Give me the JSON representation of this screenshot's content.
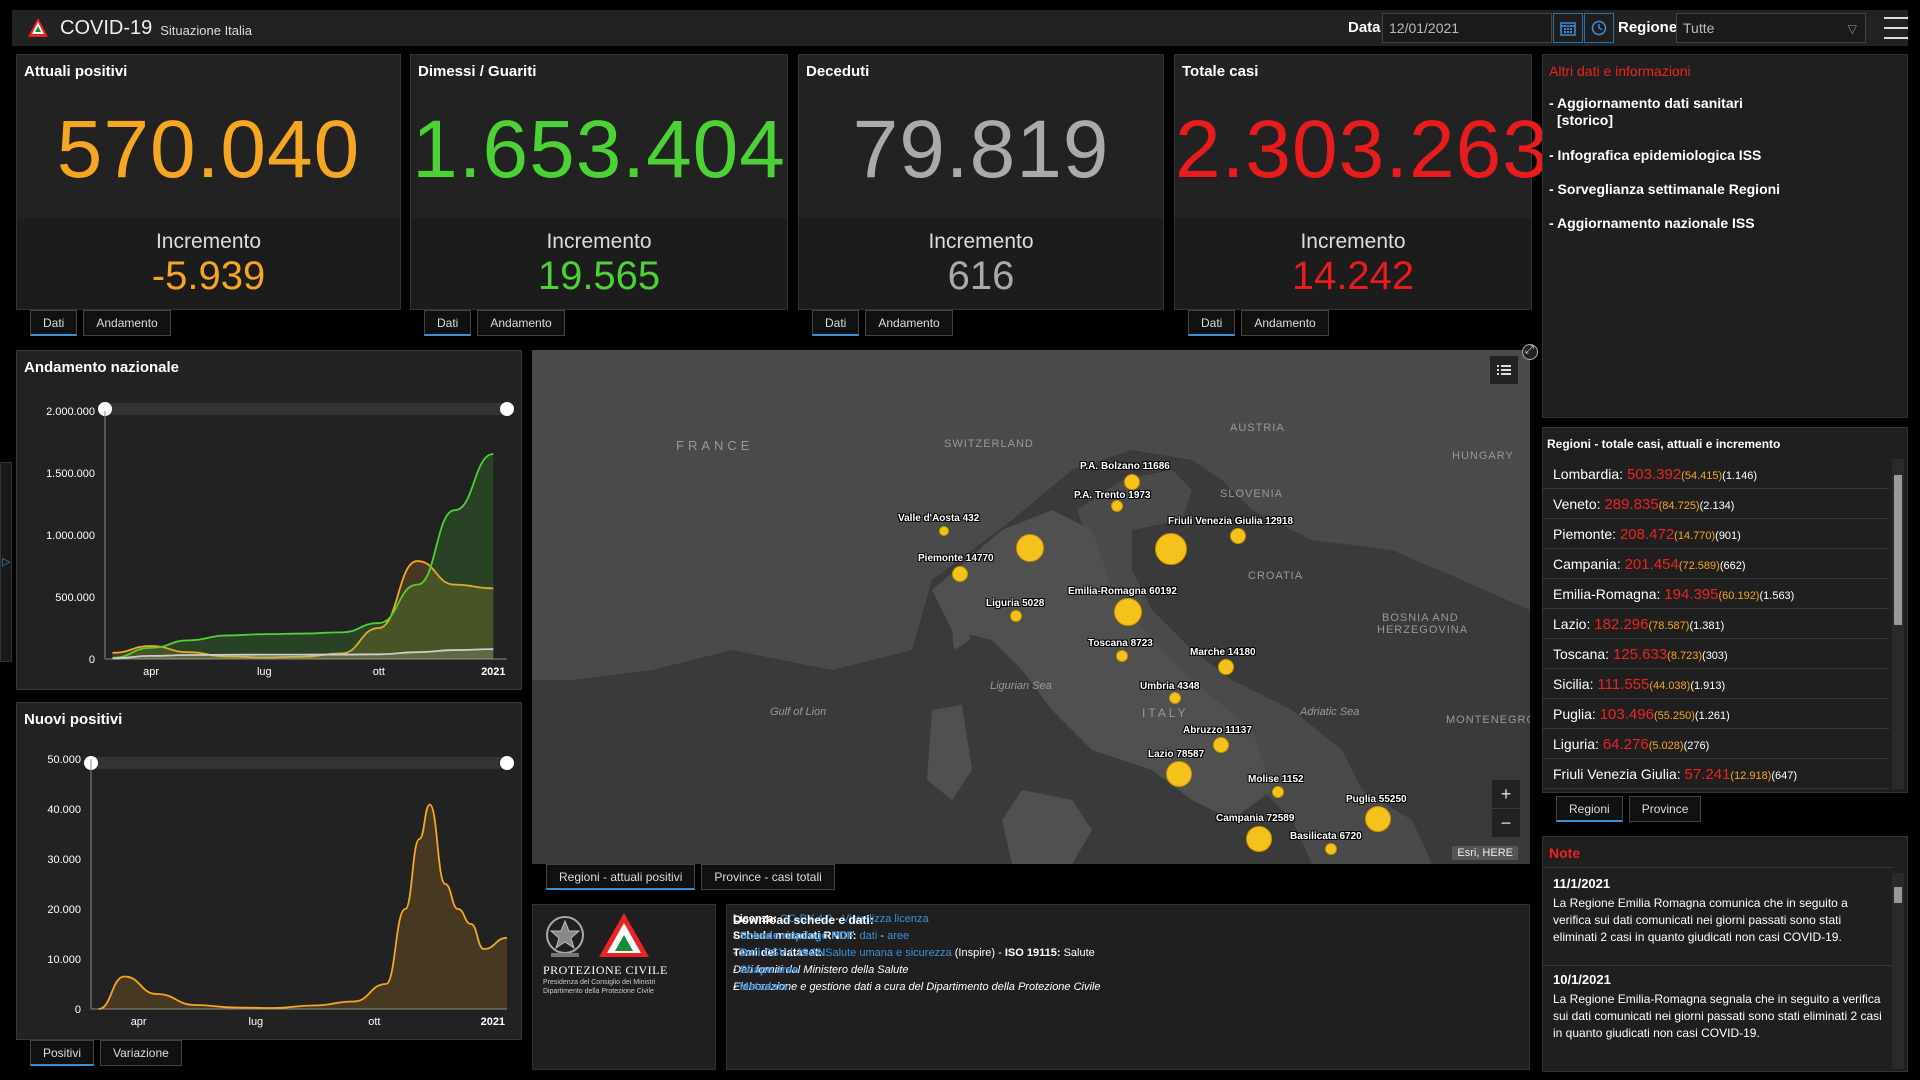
{
  "header": {
    "title": "COVID-19",
    "subtitle": "Situazione Italia",
    "data_label": "Data",
    "date_value": "12/01/2021",
    "regione_label": "Regione",
    "regione_value": "Tutte"
  },
  "cards": [
    {
      "title": "Attuali positivi",
      "value": "570.040",
      "inc_label": "Incremento",
      "inc_value": "-5.939",
      "color": "#f5a623"
    },
    {
      "title": "Dimessi / Guariti",
      "value": "1.653.404",
      "inc_label": "Incremento",
      "inc_value": "19.565",
      "color": "#4cd137"
    },
    {
      "title": "Deceduti",
      "value": "79.819",
      "inc_label": "Incremento",
      "inc_value": "616",
      "color": "#aaaaaa"
    },
    {
      "title": "Totale casi",
      "value": "2.303.263",
      "inc_label": "Incremento",
      "inc_value": "14.242",
      "color": "#e81c1c"
    }
  ],
  "card_tabs": {
    "dati": "Dati",
    "andamento": "Andamento"
  },
  "side_links": {
    "title": "Altri dati e informazioni",
    "items": [
      "- Aggiornamento dati sanitari",
      "[storico]",
      "- Infografica epidemiologica ISS",
      "- Sorveglianza settimanale Regioni",
      "- Aggiornamento nazionale ISS"
    ]
  },
  "chart1": {
    "title": "Andamento nazionale",
    "y_ticks": [
      "2.000.000",
      "1.500.000",
      "1.000.000",
      "500.000",
      "0"
    ],
    "x_ticks": [
      "apr",
      "lug",
      "ott",
      "2021"
    ]
  },
  "chart2": {
    "title": "Nuovi positivi",
    "y_ticks": [
      "50.000",
      "40.000",
      "30.000",
      "20.000",
      "10.000",
      "0"
    ],
    "x_ticks": [
      "apr",
      "lug",
      "ott",
      "2021"
    ],
    "tabs": [
      "Positivi",
      "Variazione"
    ]
  },
  "map": {
    "countries": [
      "FRANCE",
      "SWITZERLAND",
      "AUSTRIA",
      "HUNGARY",
      "SLOVENIA",
      "CROATIA",
      "BOSNIA AND",
      "HERZEGOVINA",
      "MONTENEGRO",
      "ITALY"
    ],
    "seas": [
      "Ligurian Sea",
      "Gulf of Lion",
      "Adriatic Sea"
    ],
    "labels": [
      "P.A. Bolzano 11686",
      "P.A. Trento 1973",
      "Valle d'Aosta 432",
      "Friuli Venezia Giulia 12918",
      "Piemonte 14770",
      "Emilia-Romagna 60192",
      "Liguria 5028",
      "Toscana 8723",
      "Marche 14180",
      "Umbria 4348",
      "Abruzzo 11137",
      "Lazio 78587",
      "Molise 1152",
      "Puglia 55250",
      "Campania 72589",
      "Basilicata 6720"
    ],
    "attribution": "Esri, HERE",
    "tabs": [
      "Regioni - attuali positivi",
      "Province - casi totali"
    ]
  },
  "regions": {
    "title": "Regioni - totale casi, attuali e incremento",
    "rows": [
      {
        "name": "Lombardia:",
        "tot": "503.392",
        "att": "(54.415)",
        "inc": "(1.146)"
      },
      {
        "name": "Veneto:",
        "tot": "289.835",
        "att": "(84.725)",
        "inc": "(2.134)"
      },
      {
        "name": "Piemonte:",
        "tot": "208.472",
        "att": "(14.770)",
        "inc": "(901)"
      },
      {
        "name": "Campania:",
        "tot": "201.454",
        "att": "(72.589)",
        "inc": "(662)"
      },
      {
        "name": "Emilia-Romagna:",
        "tot": "194.395",
        "att": "(60.192)",
        "inc": "(1.563)"
      },
      {
        "name": "Lazio:",
        "tot": "182.296",
        "att": "(78.587)",
        "inc": "(1.381)"
      },
      {
        "name": "Toscana:",
        "tot": "125.633",
        "att": "(8.723)",
        "inc": "(303)"
      },
      {
        "name": "Sicilia:",
        "tot": "111.555",
        "att": "(44.038)",
        "inc": "(1.913)"
      },
      {
        "name": "Puglia:",
        "tot": "103.496",
        "att": "(55.250)",
        "inc": "(1.261)"
      },
      {
        "name": "Liguria:",
        "tot": "64.276",
        "att": "(5.028)",
        "inc": "(276)"
      },
      {
        "name": "Friuli Venezia Giulia:",
        "tot": "57.241",
        "att": "(12.918)",
        "inc": "(647)"
      }
    ],
    "tabs": [
      "Regioni",
      "Province"
    ]
  },
  "notes": {
    "title": "Note",
    "items": [
      {
        "date": "11/1/2021",
        "text": "La Regione Emilia Romagna comunica che in seguito a verifica sui dati comunicati nei giorni passati sono stati eliminati 2 casi in quanto giudicati non casi COVID-19."
      },
      {
        "date": "10/1/2021",
        "text": "La Regione Emilia-Romagna segnala che in seguito a verifica sui dati comunicati nei giorni passati sono stati eliminati 2 casi in quanto giudicati non casi COVID-19."
      }
    ]
  },
  "gov": {
    "name": "PROTEZIONE CIVILE",
    "line1": "Presidenza del Consiglio dei Ministri",
    "line2": "Dipartimento della Protezione Civile"
  },
  "license": {
    "licenza_label": "Licenza:",
    "licenza_link": "CC-BY-4.0",
    "licenza_sep": " - ",
    "licenza_view": "Visualizza licenza",
    "metadati_label": "Scheda metadati RNDT:",
    "metadati_dati": "dati",
    "metadati_sep": " - ",
    "metadati_aree": "aree",
    "temi_label": "Temi del dataset:",
    "temi_link": "Salute umana e sicurezza",
    "temi_rest": " (Inspire) - ",
    "temi_iso": "ISO 19115:",
    "temi_salute": " Salute",
    "fonte": "Dati forniti dal Ministero della Salute",
    "elaborazione": "Elaborazione e gestione dati a cura del Dipartimento della Protezione Civile",
    "download_title": "Download schede e dati:",
    "downloads": [
      "Schede riepilogo PDF",
      "Dati CSV / JSON",
      "Shape aree",
      "Metadata"
    ],
    "dash": "- "
  },
  "chart_data": [
    {
      "type": "line",
      "title": "Andamento nazionale",
      "x": [
        "2020-03",
        "2020-04",
        "2020-05",
        "2020-06",
        "2020-07",
        "2020-08",
        "2020-09",
        "2020-10",
        "2020-11",
        "2020-12",
        "2021-01"
      ],
      "series": [
        {
          "values": [
            50000,
            105000,
            55000,
            20000,
            13000,
            18000,
            45000,
            250000,
            790000,
            600000,
            570040
          ],
          "color": "#f5a623"
        },
        {
          "values": [
            10000,
            90000,
            150000,
            190000,
            200000,
            205000,
            215000,
            290000,
            600000,
            1200000,
            1653404
          ],
          "color": "#4cd137"
        },
        {
          "values": [
            5000,
            25000,
            32000,
            34500,
            35100,
            35400,
            35800,
            38000,
            55000,
            72000,
            79819
          ],
          "color": "#cccccc"
        }
      ],
      "ylim": [
        0,
        2000000
      ]
    },
    {
      "type": "line",
      "title": "Nuovi positivi",
      "x": [
        "2020-03-01",
        "2020-03-21",
        "2020-04-15",
        "2020-05-15",
        "2020-06-15",
        "2020-07-15",
        "2020-08-15",
        "2020-09-15",
        "2020-10-10",
        "2020-10-25",
        "2020-11-05",
        "2020-11-13",
        "2020-11-25",
        "2020-12-05",
        "2020-12-15",
        "2020-12-25",
        "2021-01-12"
      ],
      "series": [
        {
          "values": [
            0,
            6500,
            3000,
            800,
            300,
            200,
            700,
            1500,
            5000,
            20000,
            34000,
            40900,
            25000,
            20000,
            17000,
            12000,
            14242
          ],
          "color": "#f5a623"
        }
      ],
      "ylim": [
        0,
        50000
      ]
    }
  ]
}
